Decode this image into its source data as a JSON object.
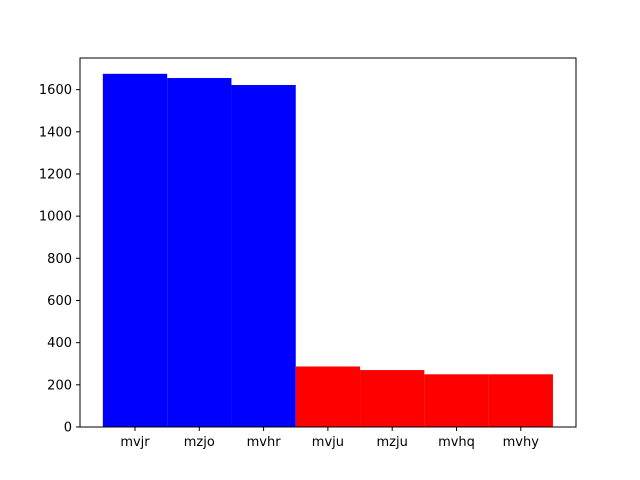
{
  "chart_data": {
    "type": "bar",
    "title": "",
    "xlabel": "",
    "ylabel": "",
    "categories": [
      "mvjr",
      "mzjo",
      "mvhr",
      "mvju",
      "mzju",
      "mvhq",
      "mvhy"
    ],
    "values": [
      1675,
      1655,
      1622,
      287,
      270,
      250,
      250
    ],
    "bar_colors": [
      "#0000ff",
      "#0000ff",
      "#0000ff",
      "#ff0000",
      "#ff0000",
      "#ff0000",
      "#ff0000"
    ],
    "ylim": [
      0,
      1750
    ],
    "yticks": [
      0,
      200,
      400,
      600,
      800,
      1000,
      1200,
      1400,
      1600
    ],
    "grid": false,
    "legend": "none"
  }
}
